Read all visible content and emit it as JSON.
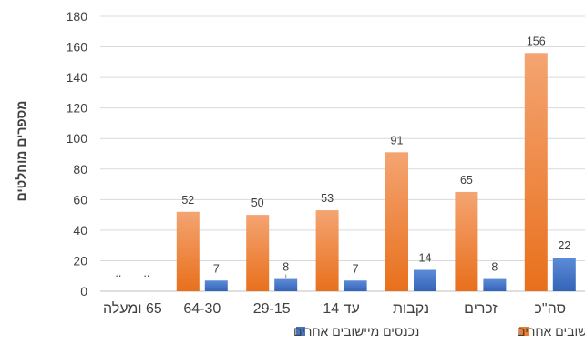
{
  "chart_data": {
    "type": "bar",
    "title": "",
    "ylabel": "מספרים מוחלטים",
    "xlabel": "",
    "ylim": [
      0,
      180
    ],
    "yticks": [
      0,
      20,
      40,
      60,
      80,
      100,
      120,
      140,
      160,
      180
    ],
    "grid": true,
    "legend_position": "bottom",
    "categories": [
      "סה\"כ",
      "זכרים",
      "נקבות",
      "עד 14",
      "29-15",
      "64-30",
      "65 ומעלה"
    ],
    "series": [
      {
        "name": "יוצאים ליישובים אחרים",
        "values": [
          156,
          65,
          91,
          53,
          50,
          52,
          null
        ],
        "labels": [
          "156",
          "65",
          "91",
          "53",
          "50",
          "52",
          ".."
        ],
        "color": "#ED7D31"
      },
      {
        "name": "נכנסים מיישובים אחרים",
        "values": [
          22,
          8,
          14,
          7,
          8,
          7,
          null
        ],
        "labels": [
          "22",
          "8",
          "14",
          "7",
          "8",
          "7",
          ".."
        ],
        "color": "#4472C4"
      }
    ]
  }
}
